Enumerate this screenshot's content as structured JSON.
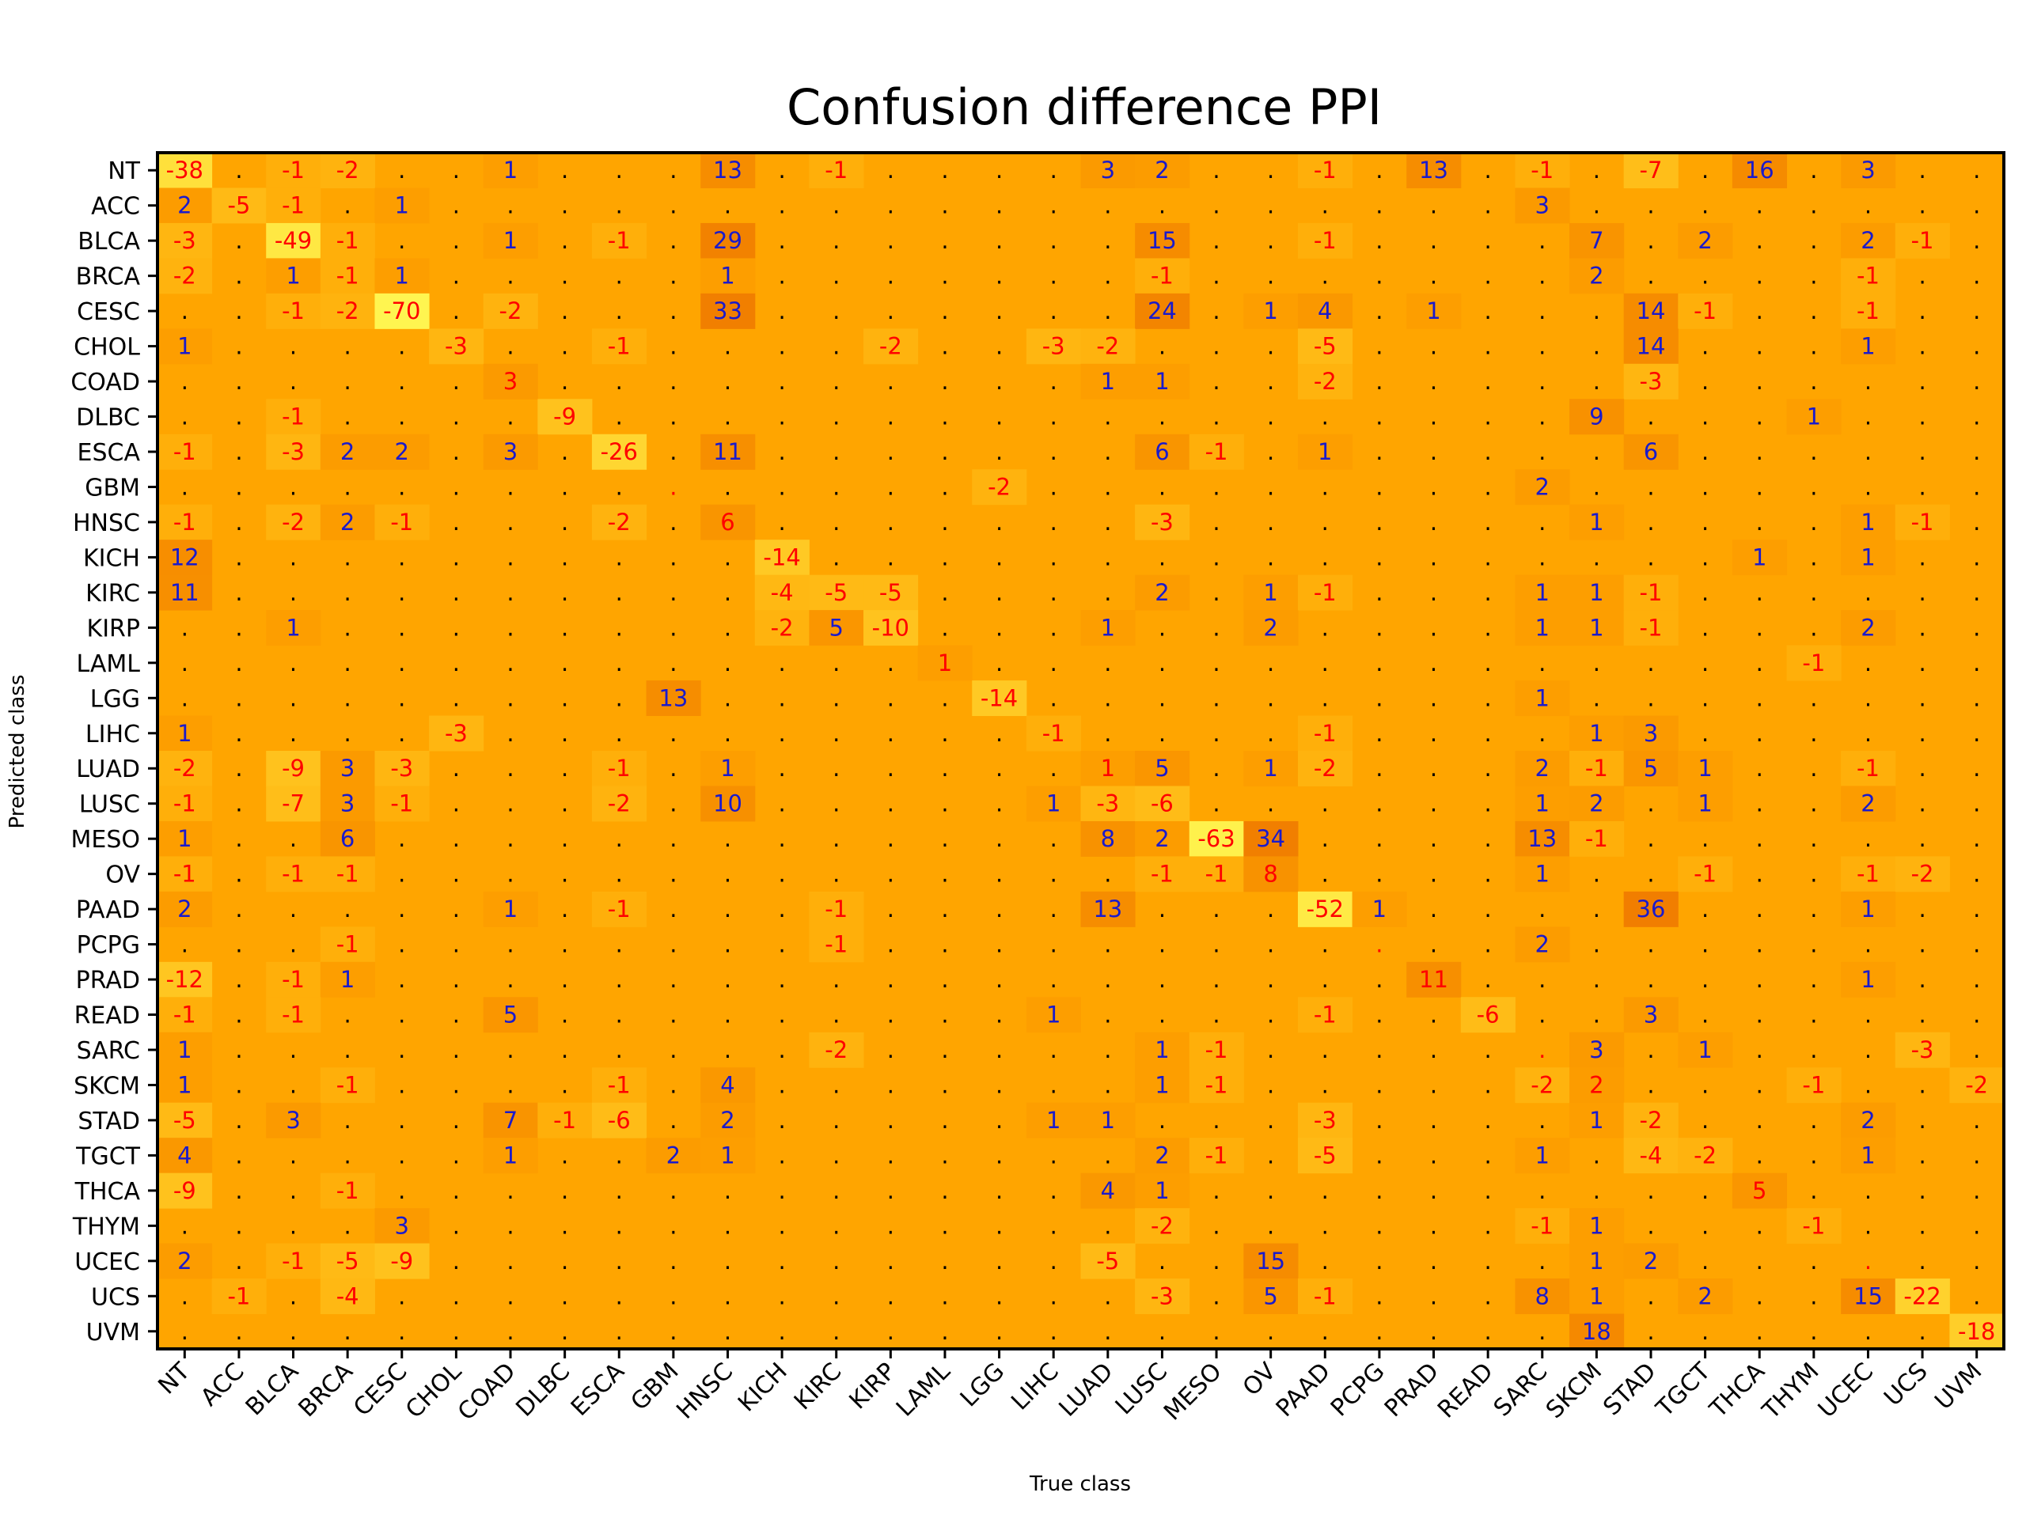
{
  "chart_data": {
    "type": "heatmap",
    "title": "Confusion difference PPI",
    "xlabel": "True class",
    "ylabel": "Predicted class",
    "classes": [
      "NT",
      "ACC",
      "BLCA",
      "BRCA",
      "CESC",
      "CHOL",
      "COAD",
      "DLBC",
      "ESCA",
      "GBM",
      "HNSC",
      "KICH",
      "KIRC",
      "KIRP",
      "LAML",
      "LGG",
      "LIHC",
      "LUAD",
      "LUSC",
      "MESO",
      "OV",
      "PAAD",
      "PCPG",
      "PRAD",
      "READ",
      "SARC",
      "SKCM",
      "STAD",
      "TGCT",
      "THCA",
      "THYM",
      "UCEC",
      "UCS",
      "UVM"
    ],
    "zero_marker": ".",
    "values": [
      [
        -38,
        0,
        -1,
        -2,
        0,
        0,
        1,
        0,
        0,
        0,
        13,
        0,
        -1,
        0,
        0,
        0,
        0,
        3,
        2,
        0,
        0,
        -1,
        0,
        13,
        0,
        -1,
        0,
        -7,
        0,
        16,
        0,
        3,
        0,
        0
      ],
      [
        2,
        -5,
        -1,
        0,
        1,
        0,
        0,
        0,
        0,
        0,
        0,
        0,
        0,
        0,
        0,
        0,
        0,
        0,
        0,
        0,
        0,
        0,
        0,
        0,
        0,
        3,
        0,
        0,
        0,
        0,
        0,
        0,
        0,
        0
      ],
      [
        -3,
        0,
        -49,
        -1,
        0,
        0,
        1,
        0,
        -1,
        0,
        29,
        0,
        0,
        0,
        0,
        0,
        0,
        0,
        15,
        0,
        0,
        -1,
        0,
        0,
        0,
        0,
        7,
        0,
        2,
        0,
        0,
        2,
        -1,
        0
      ],
      [
        -2,
        0,
        1,
        -1,
        1,
        0,
        0,
        0,
        0,
        0,
        1,
        0,
        0,
        0,
        0,
        0,
        0,
        0,
        -1,
        0,
        0,
        0,
        0,
        0,
        0,
        0,
        2,
        0,
        0,
        0,
        0,
        -1,
        0,
        0
      ],
      [
        0,
        0,
        -1,
        -2,
        -70,
        0,
        -2,
        0,
        0,
        0,
        33,
        0,
        0,
        0,
        0,
        0,
        0,
        0,
        24,
        0,
        1,
        4,
        0,
        1,
        0,
        0,
        0,
        14,
        -1,
        0,
        0,
        -1,
        0,
        0
      ],
      [
        1,
        0,
        0,
        0,
        0,
        -3,
        0,
        0,
        -1,
        0,
        0,
        0,
        0,
        -2,
        0,
        0,
        -3,
        -2,
        0,
        0,
        0,
        -5,
        0,
        0,
        0,
        0,
        0,
        14,
        0,
        0,
        0,
        1,
        0,
        0
      ],
      [
        0,
        0,
        0,
        0,
        0,
        0,
        3,
        0,
        0,
        0,
        0,
        0,
        0,
        0,
        0,
        0,
        0,
        1,
        1,
        0,
        0,
        -2,
        0,
        0,
        0,
        0,
        0,
        -3,
        0,
        0,
        0,
        0,
        0,
        0
      ],
      [
        0,
        0,
        -1,
        0,
        0,
        0,
        0,
        -9,
        0,
        0,
        0,
        0,
        0,
        0,
        0,
        0,
        0,
        0,
        0,
        0,
        0,
        0,
        0,
        0,
        0,
        0,
        9,
        0,
        0,
        0,
        1,
        0,
        0,
        0
      ],
      [
        -1,
        0,
        -3,
        2,
        2,
        0,
        3,
        0,
        -26,
        0,
        11,
        0,
        0,
        0,
        0,
        0,
        0,
        0,
        6,
        -1,
        0,
        1,
        0,
        0,
        0,
        0,
        0,
        6,
        0,
        0,
        0,
        0,
        0,
        0
      ],
      [
        0,
        0,
        0,
        0,
        0,
        0,
        0,
        0,
        0,
        0,
        0,
        0,
        0,
        0,
        0,
        -2,
        0,
        0,
        0,
        0,
        0,
        0,
        0,
        0,
        0,
        2,
        0,
        0,
        0,
        0,
        0,
        0,
        0,
        0
      ],
      [
        -1,
        0,
        -2,
        2,
        -1,
        0,
        0,
        0,
        -2,
        0,
        6,
        0,
        0,
        0,
        0,
        0,
        0,
        0,
        -3,
        0,
        0,
        0,
        0,
        0,
        0,
        0,
        1,
        0,
        0,
        0,
        0,
        1,
        -1,
        0
      ],
      [
        12,
        0,
        0,
        0,
        0,
        0,
        0,
        0,
        0,
        0,
        0,
        -14,
        0,
        0,
        0,
        0,
        0,
        0,
        0,
        0,
        0,
        0,
        0,
        0,
        0,
        0,
        0,
        0,
        0,
        1,
        0,
        1,
        0,
        0
      ],
      [
        11,
        0,
        0,
        0,
        0,
        0,
        0,
        0,
        0,
        0,
        0,
        -4,
        -5,
        -5,
        0,
        0,
        0,
        0,
        2,
        0,
        1,
        -1,
        0,
        0,
        0,
        1,
        1,
        -1,
        0,
        0,
        0,
        0,
        0,
        0
      ],
      [
        0,
        0,
        1,
        0,
        0,
        0,
        0,
        0,
        0,
        0,
        0,
        -2,
        5,
        -10,
        0,
        0,
        0,
        1,
        0,
        0,
        2,
        0,
        0,
        0,
        0,
        1,
        1,
        -1,
        0,
        0,
        0,
        2,
        0,
        0
      ],
      [
        0,
        0,
        0,
        0,
        0,
        0,
        0,
        0,
        0,
        0,
        0,
        0,
        0,
        0,
        1,
        0,
        0,
        0,
        0,
        0,
        0,
        0,
        0,
        0,
        0,
        0,
        0,
        0,
        0,
        0,
        -1,
        0,
        0,
        0
      ],
      [
        0,
        0,
        0,
        0,
        0,
        0,
        0,
        0,
        0,
        13,
        0,
        0,
        0,
        0,
        0,
        -14,
        0,
        0,
        0,
        0,
        0,
        0,
        0,
        0,
        0,
        1,
        0,
        0,
        0,
        0,
        0,
        0,
        0,
        0
      ],
      [
        1,
        0,
        0,
        0,
        0,
        -3,
        0,
        0,
        0,
        0,
        0,
        0,
        0,
        0,
        0,
        0,
        -1,
        0,
        0,
        0,
        0,
        -1,
        0,
        0,
        0,
        0,
        1,
        3,
        0,
        0,
        0,
        0,
        0,
        0
      ],
      [
        -2,
        0,
        -9,
        3,
        -3,
        0,
        0,
        0,
        -1,
        0,
        1,
        0,
        0,
        0,
        0,
        0,
        0,
        1,
        5,
        0,
        1,
        -2,
        0,
        0,
        0,
        2,
        -1,
        5,
        1,
        0,
        0,
        -1,
        0,
        0
      ],
      [
        -1,
        0,
        -7,
        3,
        -1,
        0,
        0,
        0,
        -2,
        0,
        10,
        0,
        0,
        0,
        0,
        0,
        1,
        -3,
        -6,
        0,
        0,
        0,
        0,
        0,
        0,
        1,
        2,
        0,
        1,
        0,
        0,
        2,
        0,
        0
      ],
      [
        1,
        0,
        0,
        6,
        0,
        0,
        0,
        0,
        0,
        0,
        0,
        0,
        0,
        0,
        0,
        0,
        0,
        8,
        2,
        -63,
        34,
        0,
        0,
        0,
        0,
        13,
        -1,
        0,
        0,
        0,
        0,
        0,
        0,
        0
      ],
      [
        -1,
        0,
        -1,
        -1,
        0,
        0,
        0,
        0,
        0,
        0,
        0,
        0,
        0,
        0,
        0,
        0,
        0,
        0,
        -1,
        -1,
        8,
        0,
        0,
        0,
        0,
        1,
        0,
        0,
        -1,
        0,
        0,
        -1,
        -2,
        0
      ],
      [
        2,
        0,
        0,
        0,
        0,
        0,
        1,
        0,
        -1,
        0,
        0,
        0,
        -1,
        0,
        0,
        0,
        0,
        13,
        0,
        0,
        0,
        -52,
        1,
        0,
        0,
        0,
        0,
        36,
        0,
        0,
        0,
        1,
        0,
        0
      ],
      [
        0,
        0,
        0,
        -1,
        0,
        0,
        0,
        0,
        0,
        0,
        0,
        0,
        -1,
        0,
        0,
        0,
        0,
        0,
        0,
        0,
        0,
        0,
        0,
        0,
        0,
        2,
        0,
        0,
        0,
        0,
        0,
        0,
        0,
        0
      ],
      [
        -12,
        0,
        -1,
        1,
        0,
        0,
        0,
        0,
        0,
        0,
        0,
        0,
        0,
        0,
        0,
        0,
        0,
        0,
        0,
        0,
        0,
        0,
        0,
        11,
        0,
        0,
        0,
        0,
        0,
        0,
        0,
        1,
        0,
        0
      ],
      [
        -1,
        0,
        -1,
        0,
        0,
        0,
        5,
        0,
        0,
        0,
        0,
        0,
        0,
        0,
        0,
        0,
        1,
        0,
        0,
        0,
        0,
        -1,
        0,
        0,
        -6,
        0,
        0,
        3,
        0,
        0,
        0,
        0,
        0,
        0
      ],
      [
        1,
        0,
        0,
        0,
        0,
        0,
        0,
        0,
        0,
        0,
        0,
        0,
        -2,
        0,
        0,
        0,
        0,
        0,
        1,
        -1,
        0,
        0,
        0,
        0,
        0,
        0,
        3,
        0,
        1,
        0,
        0,
        0,
        -3,
        0
      ],
      [
        1,
        0,
        0,
        -1,
        0,
        0,
        0,
        0,
        -1,
        0,
        4,
        0,
        0,
        0,
        0,
        0,
        0,
        0,
        1,
        -1,
        0,
        0,
        0,
        0,
        0,
        -2,
        2,
        0,
        0,
        0,
        -1,
        0,
        0,
        -2
      ],
      [
        -5,
        0,
        3,
        0,
        0,
        0,
        7,
        -1,
        -6,
        0,
        2,
        0,
        0,
        0,
        0,
        0,
        1,
        1,
        0,
        0,
        0,
        -3,
        0,
        0,
        0,
        0,
        1,
        -2,
        0,
        0,
        0,
        2,
        0,
        0
      ],
      [
        4,
        0,
        0,
        0,
        0,
        0,
        1,
        0,
        0,
        2,
        1,
        0,
        0,
        0,
        0,
        0,
        0,
        0,
        2,
        -1,
        0,
        -5,
        0,
        0,
        0,
        1,
        0,
        -4,
        -2,
        0,
        0,
        1,
        0,
        0
      ],
      [
        -9,
        0,
        0,
        -1,
        0,
        0,
        0,
        0,
        0,
        0,
        0,
        0,
        0,
        0,
        0,
        0,
        0,
        4,
        1,
        0,
        0,
        0,
        0,
        0,
        0,
        0,
        0,
        0,
        0,
        5,
        0,
        0,
        0,
        0
      ],
      [
        0,
        0,
        0,
        0,
        3,
        0,
        0,
        0,
        0,
        0,
        0,
        0,
        0,
        0,
        0,
        0,
        0,
        0,
        -2,
        0,
        0,
        0,
        0,
        0,
        0,
        -1,
        1,
        0,
        0,
        0,
        -1,
        0,
        0,
        0
      ],
      [
        2,
        0,
        -1,
        -5,
        -9,
        0,
        0,
        0,
        0,
        0,
        0,
        0,
        0,
        0,
        0,
        0,
        0,
        -5,
        0,
        0,
        15,
        0,
        0,
        0,
        0,
        0,
        1,
        2,
        0,
        0,
        0,
        0,
        0,
        0
      ],
      [
        0,
        -1,
        0,
        -4,
        0,
        0,
        0,
        0,
        0,
        0,
        0,
        0,
        0,
        0,
        0,
        0,
        0,
        0,
        -3,
        0,
        5,
        -1,
        0,
        0,
        0,
        8,
        1,
        0,
        2,
        0,
        0,
        15,
        -22,
        0
      ],
      [
        0,
        0,
        0,
        0,
        0,
        0,
        0,
        0,
        0,
        0,
        0,
        0,
        0,
        0,
        0,
        0,
        0,
        0,
        0,
        0,
        0,
        0,
        0,
        0,
        0,
        0,
        18,
        0,
        0,
        0,
        0,
        0,
        0,
        -18
      ]
    ],
    "colors": {
      "background": "#ffa500",
      "positive_text": "#1a1acc",
      "negative_text": "#ff0000",
      "zero_text": "#000000",
      "diagonal_text": "#ff0000"
    }
  }
}
